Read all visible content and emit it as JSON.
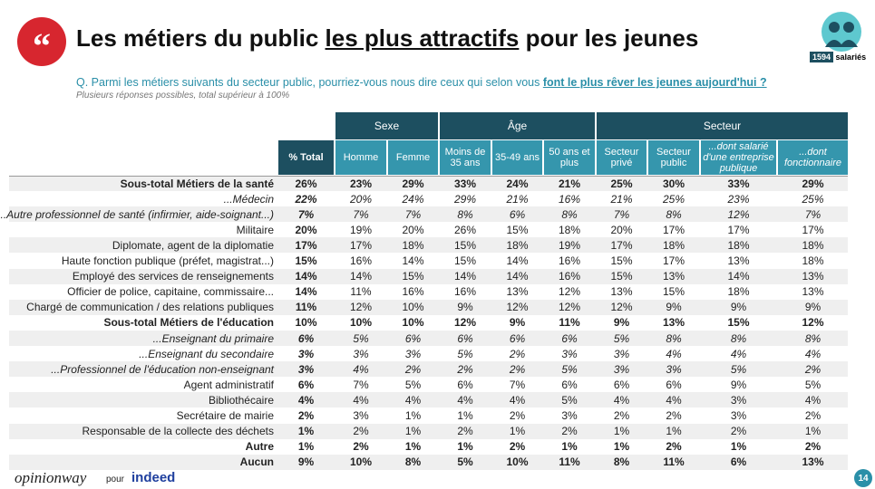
{
  "header": {
    "title": [
      "Les métiers du public ",
      "les plus attractifs",
      " pour les jeunes"
    ],
    "badge": {
      "count": "1594",
      "label": "salariés"
    },
    "question": [
      "Q. Parmi les métiers suivants du secteur public, pourriez-vous nous dire ceux qui selon vous ",
      "font le plus rêver les jeunes aujourd'hui ?"
    ],
    "note": "Plusieurs réponses possibles, total supérieur à 100%"
  },
  "table": {
    "groups": [
      {
        "label": "Sexe",
        "span": 2
      },
      {
        "label": "Âge",
        "span": 3
      },
      {
        "label": "Secteur",
        "span": 4
      }
    ],
    "columns": [
      "% Total",
      "Homme",
      "Femme",
      "Moins de 35 ans",
      "35-49 ans",
      "50 ans et plus",
      "Secteur privé",
      "Secteur public",
      "...dont salarié d'une entreprise publique",
      "...dont fonctionnaire"
    ],
    "rows": [
      {
        "label": "Sous-total Métiers de la santé",
        "style": "bold",
        "values": [
          "26%",
          "23%",
          "29%",
          "33%",
          "24%",
          "21%",
          "25%",
          "30%",
          "33%",
          "29%"
        ]
      },
      {
        "label": "...Médecin",
        "style": "italic",
        "values": [
          "22%",
          "20%",
          "24%",
          "29%",
          "21%",
          "16%",
          "21%",
          "25%",
          "23%",
          "25%"
        ]
      },
      {
        "label": "...Autre professionnel de santé (infirmier, aide-soignant...)",
        "style": "italic",
        "values": [
          "7%",
          "7%",
          "7%",
          "8%",
          "6%",
          "8%",
          "7%",
          "8%",
          "12%",
          "7%"
        ]
      },
      {
        "label": "Militaire",
        "style": "normal",
        "values": [
          "20%",
          "19%",
          "20%",
          "26%",
          "15%",
          "18%",
          "20%",
          "17%",
          "17%",
          "17%"
        ]
      },
      {
        "label": "Diplomate, agent de la diplomatie",
        "style": "normal",
        "values": [
          "17%",
          "17%",
          "18%",
          "15%",
          "18%",
          "19%",
          "17%",
          "18%",
          "18%",
          "18%"
        ]
      },
      {
        "label": "Haute fonction publique (préfet, magistrat...)",
        "style": "normal",
        "values": [
          "15%",
          "16%",
          "14%",
          "15%",
          "14%",
          "16%",
          "15%",
          "17%",
          "13%",
          "18%"
        ]
      },
      {
        "label": "Employé des services de renseignements",
        "style": "normal",
        "values": [
          "14%",
          "14%",
          "15%",
          "14%",
          "14%",
          "16%",
          "15%",
          "13%",
          "14%",
          "13%"
        ]
      },
      {
        "label": "Officier de police, capitaine, commissaire...",
        "style": "normal",
        "values": [
          "14%",
          "11%",
          "16%",
          "16%",
          "13%",
          "12%",
          "13%",
          "15%",
          "18%",
          "13%"
        ]
      },
      {
        "label": "Chargé de communication / des relations publiques",
        "style": "normal",
        "values": [
          "11%",
          "12%",
          "10%",
          "9%",
          "12%",
          "12%",
          "12%",
          "9%",
          "9%",
          "9%"
        ]
      },
      {
        "label": "Sous-total Métiers de l'éducation",
        "style": "bold",
        "values": [
          "10%",
          "10%",
          "10%",
          "12%",
          "9%",
          "11%",
          "9%",
          "13%",
          "15%",
          "12%"
        ]
      },
      {
        "label": "...Enseignant du primaire",
        "style": "italic",
        "values": [
          "6%",
          "5%",
          "6%",
          "6%",
          "6%",
          "6%",
          "5%",
          "8%",
          "8%",
          "8%"
        ]
      },
      {
        "label": "...Enseignant du secondaire",
        "style": "italic",
        "values": [
          "3%",
          "3%",
          "3%",
          "5%",
          "2%",
          "3%",
          "3%",
          "4%",
          "4%",
          "4%"
        ]
      },
      {
        "label": "...Professionnel de l'éducation non-enseignant",
        "style": "italic",
        "values": [
          "3%",
          "4%",
          "2%",
          "2%",
          "2%",
          "5%",
          "3%",
          "3%",
          "5%",
          "2%"
        ]
      },
      {
        "label": "Agent administratif",
        "style": "normal",
        "values": [
          "6%",
          "7%",
          "5%",
          "6%",
          "7%",
          "6%",
          "6%",
          "6%",
          "9%",
          "5%"
        ]
      },
      {
        "label": "Bibliothécaire",
        "style": "normal",
        "values": [
          "4%",
          "4%",
          "4%",
          "4%",
          "4%",
          "5%",
          "4%",
          "4%",
          "3%",
          "4%"
        ]
      },
      {
        "label": "Secrétaire de mairie",
        "style": "normal",
        "values": [
          "2%",
          "3%",
          "1%",
          "1%",
          "2%",
          "3%",
          "2%",
          "2%",
          "3%",
          "2%"
        ]
      },
      {
        "label": "Responsable de la collecte des déchets",
        "style": "normal",
        "values": [
          "1%",
          "2%",
          "1%",
          "2%",
          "1%",
          "2%",
          "1%",
          "1%",
          "2%",
          "1%"
        ]
      },
      {
        "label": "Autre",
        "style": "bold",
        "values": [
          "1%",
          "2%",
          "1%",
          "1%",
          "2%",
          "1%",
          "1%",
          "2%",
          "1%",
          "2%"
        ]
      },
      {
        "label": "Aucun",
        "style": "bold",
        "values": [
          "9%",
          "10%",
          "8%",
          "5%",
          "10%",
          "11%",
          "8%",
          "11%",
          "6%",
          "13%"
        ]
      }
    ]
  },
  "footer": {
    "brand": "opinionway",
    "connector": "pour",
    "partner": "indeed",
    "page": "14"
  }
}
